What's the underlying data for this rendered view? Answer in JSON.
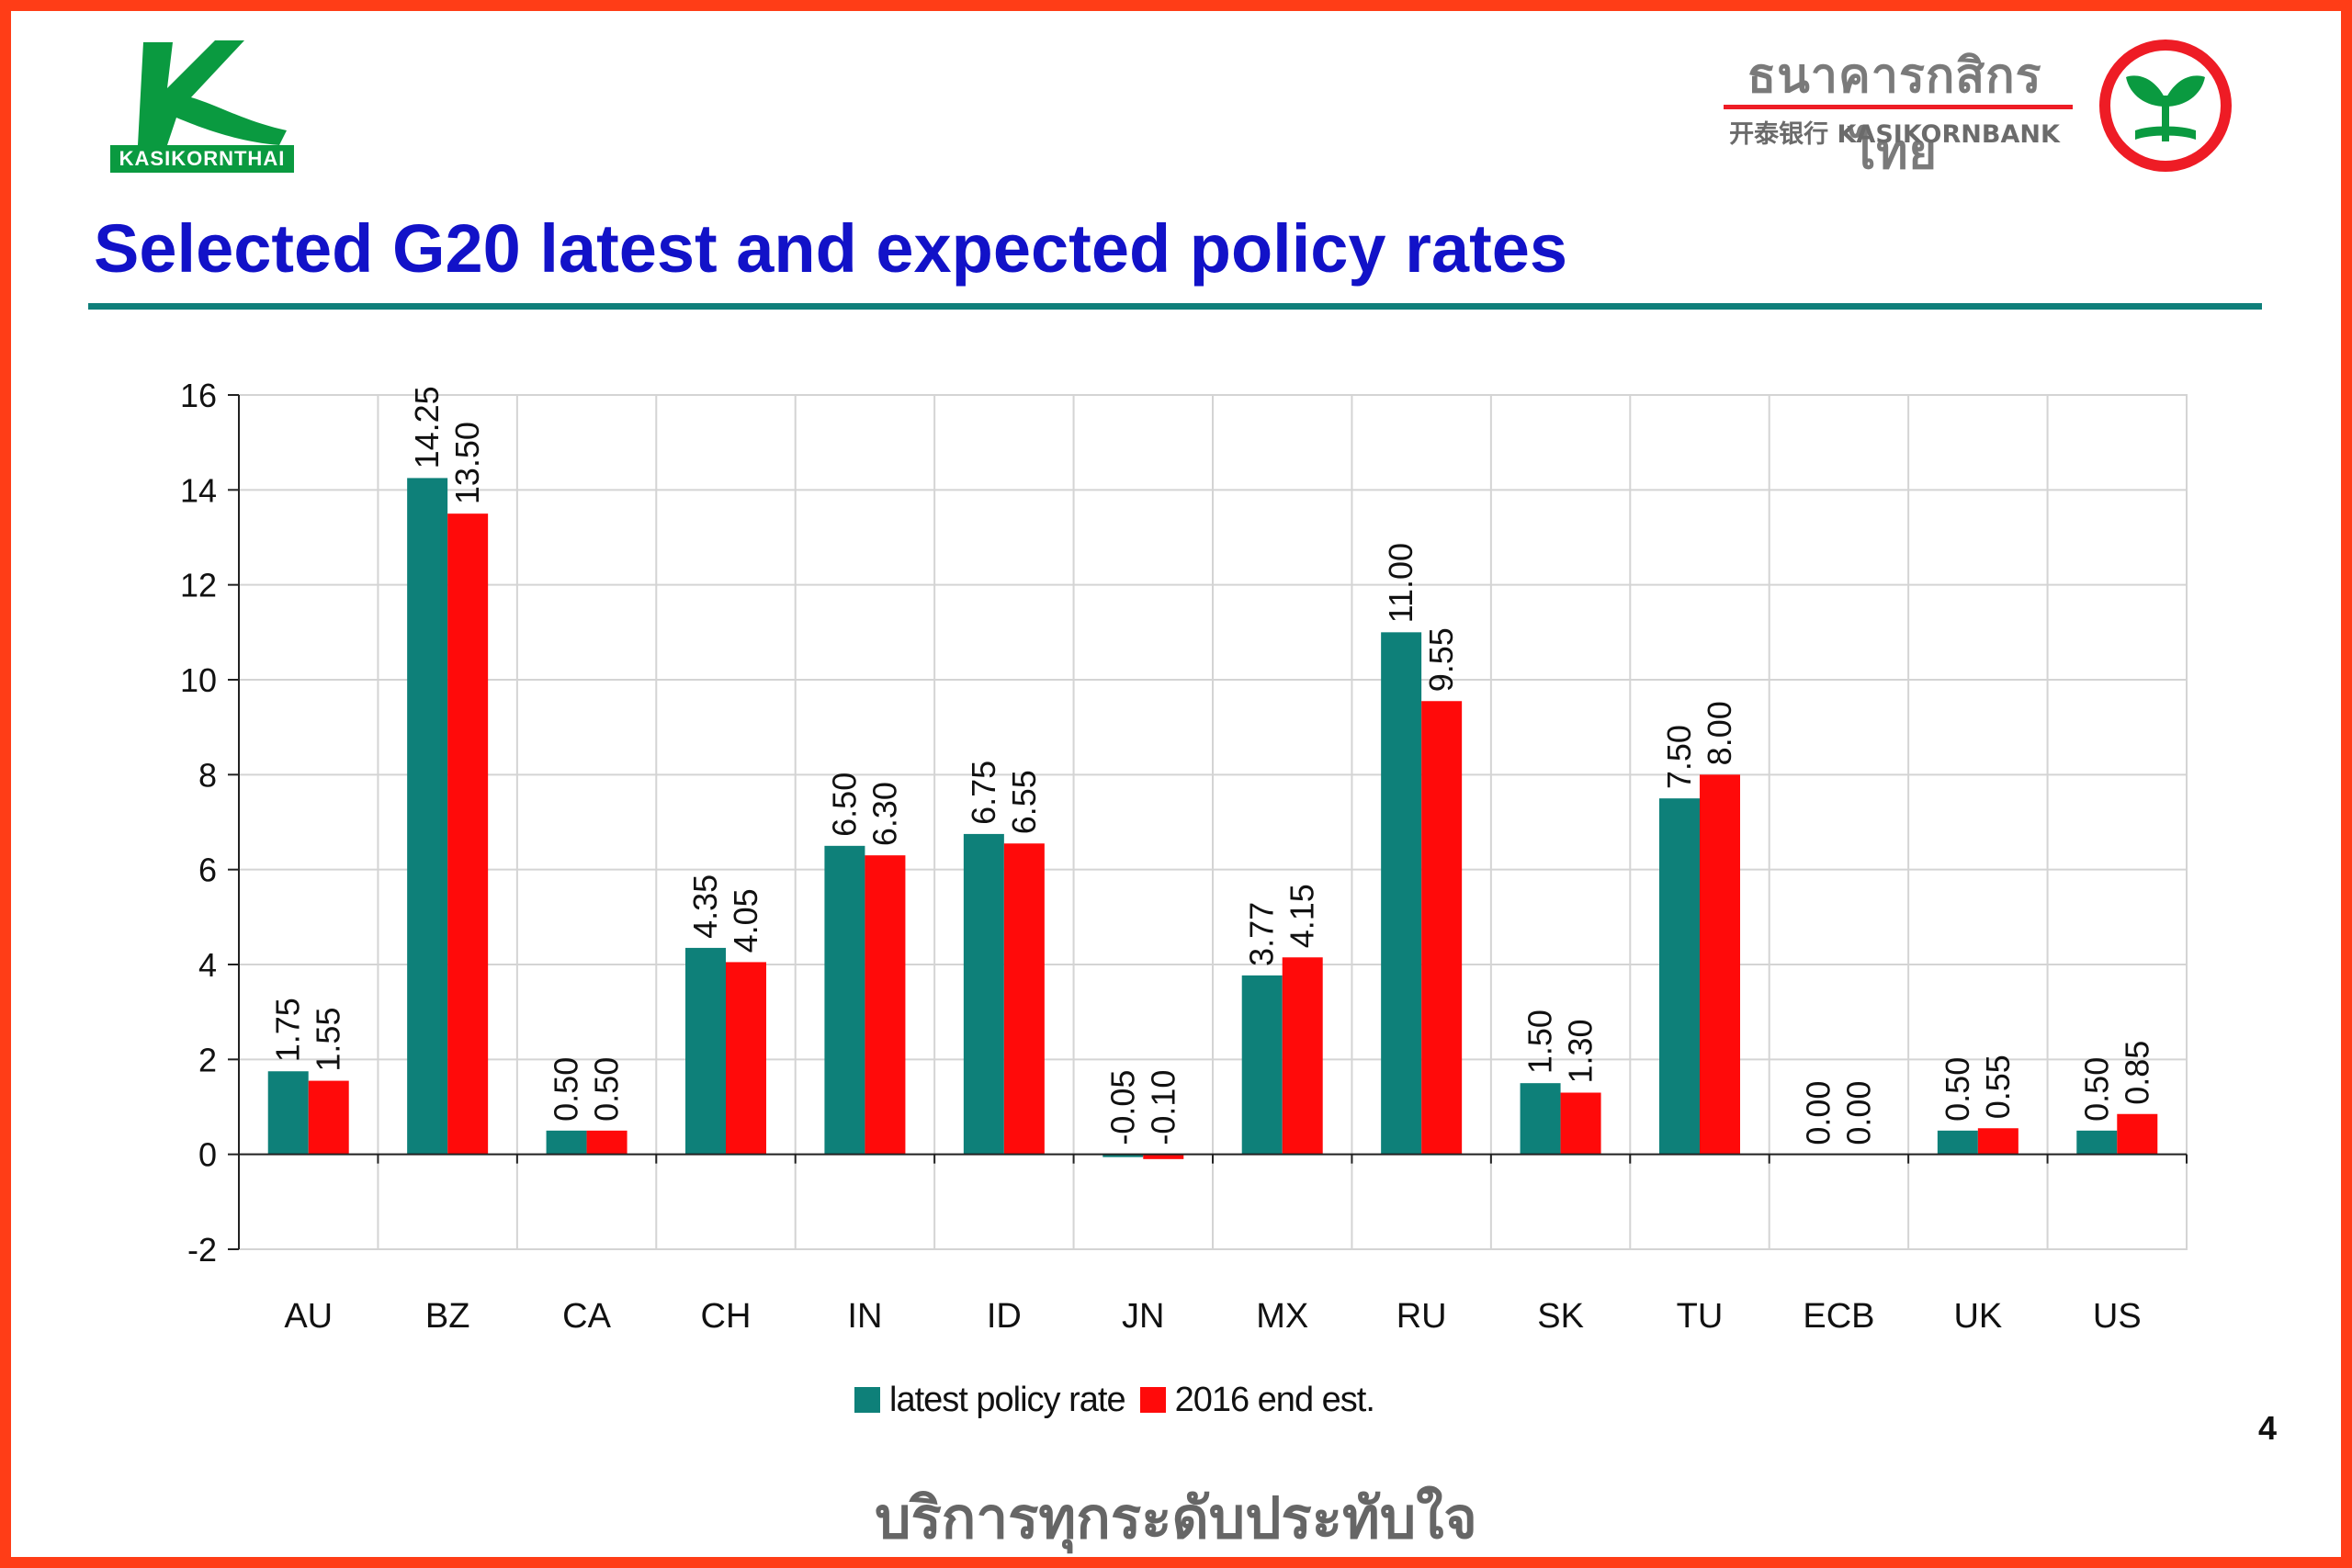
{
  "branding": {
    "left_logo_text": "KASIKORNTHAI",
    "right_logo_thai": "ธนาคารกสิกรไทย",
    "right_logo_en": "开泰银行 KASIKORNBANK",
    "colors": {
      "frame": "#ff3d17",
      "green": "#0a9a40",
      "red": "#ee1c25"
    }
  },
  "header": {
    "title": "Selected G20 latest and expected policy rates"
  },
  "footer": {
    "slogan": "บริการทุกระดับประทับใจ",
    "page_number": "4"
  },
  "chart_data": {
    "type": "bar",
    "title": "",
    "xlabel": "",
    "ylabel": "",
    "ylim": [
      -2,
      16
    ],
    "y_ticks": [
      -2,
      0,
      2,
      4,
      6,
      8,
      10,
      12,
      14,
      16
    ],
    "grid": true,
    "legend_position": "bottom-center",
    "categories": [
      "AU",
      "BZ",
      "CA",
      "CH",
      "IN",
      "ID",
      "JN",
      "MX",
      "RU",
      "SK",
      "TU",
      "ECB",
      "UK",
      "US"
    ],
    "series": [
      {
        "name": "latest policy rate",
        "color": "#0e8079",
        "values": [
          1.75,
          14.25,
          0.5,
          4.35,
          6.5,
          6.75,
          -0.05,
          3.77,
          11.0,
          1.5,
          7.5,
          0.0,
          0.5,
          0.5
        ],
        "labels": [
          "1.75",
          "14.25",
          "0.50",
          "4.35",
          "6.50",
          "6.75",
          "-0.05",
          "3.77",
          "11.00",
          "1.50",
          "7.50",
          "0.00",
          "0.50",
          "0.50"
        ]
      },
      {
        "name": "2016 end est.",
        "color": "#ff0a0a",
        "values": [
          1.55,
          13.5,
          0.5,
          4.05,
          6.3,
          6.55,
          -0.1,
          4.15,
          9.55,
          1.3,
          8.0,
          0.0,
          0.55,
          0.85
        ],
        "labels": [
          "1.55",
          "13.50",
          "0.50",
          "4.05",
          "6.30",
          "6.55",
          "-0.10",
          "4.15",
          "9.55",
          "1.30",
          "8.00",
          "0.00",
          "0.55",
          "0.85"
        ]
      }
    ]
  }
}
